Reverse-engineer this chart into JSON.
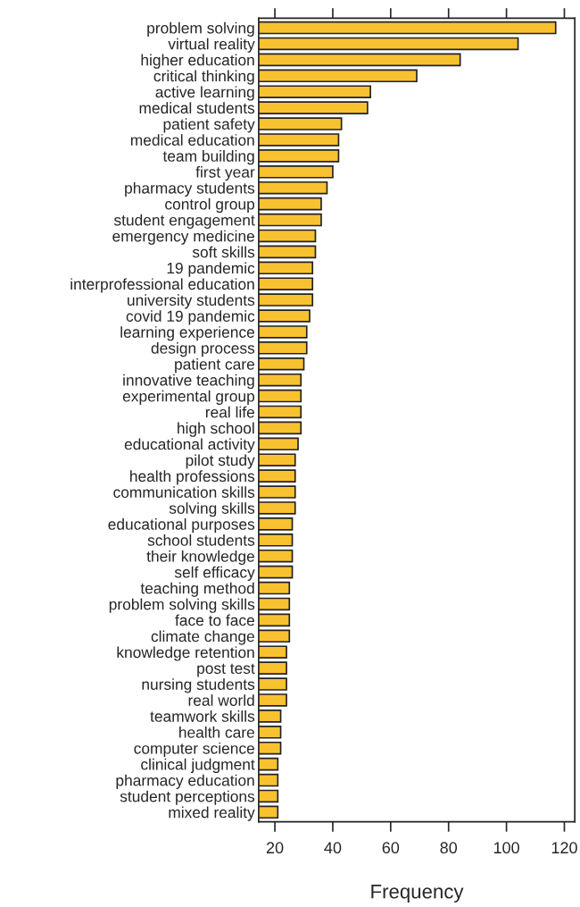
{
  "chart_data": {
    "type": "bar",
    "orientation": "horizontal",
    "xlabel": "Frequency",
    "categories": [
      "problem solving",
      "virtual reality",
      "higher education",
      "critical thinking",
      "active learning",
      "medical students",
      "patient safety",
      "medical education",
      "team building",
      "first year",
      "pharmacy students",
      "control group",
      "student engagement",
      "emergency medicine",
      "soft skills",
      "19 pandemic",
      "interprofessional education",
      "university students",
      "covid 19 pandemic",
      "learning experience",
      "design process",
      "patient care",
      "innovative teaching",
      "experimental group",
      "real life",
      "high school",
      "educational activity",
      "pilot study",
      "health professions",
      "communication skills",
      "solving skills",
      "educational purposes",
      "school students",
      "their knowledge",
      "self efficacy",
      "teaching method",
      "problem solving skills",
      "face to face",
      "climate change",
      "knowledge retention",
      "post test",
      "nursing students",
      "real world",
      "teamwork skills",
      "health care",
      "computer science",
      "clinical judgment",
      "pharmacy education",
      "student perceptions",
      "mixed reality"
    ],
    "values": [
      117,
      104,
      84,
      69,
      53,
      52,
      43,
      42,
      42,
      40,
      38,
      36,
      36,
      34,
      34,
      33,
      33,
      33,
      32,
      31,
      31,
      30,
      29,
      29,
      29,
      29,
      28,
      27,
      27,
      27,
      27,
      26,
      26,
      26,
      26,
      25,
      25,
      25,
      25,
      24,
      24,
      24,
      24,
      22,
      22,
      22,
      21,
      21,
      21,
      21
    ],
    "color": "#f8c130",
    "xlim": [
      14.4,
      123.6
    ],
    "xticks": [
      20,
      40,
      60,
      80,
      100,
      120
    ],
    "grid": false,
    "legend": false
  }
}
